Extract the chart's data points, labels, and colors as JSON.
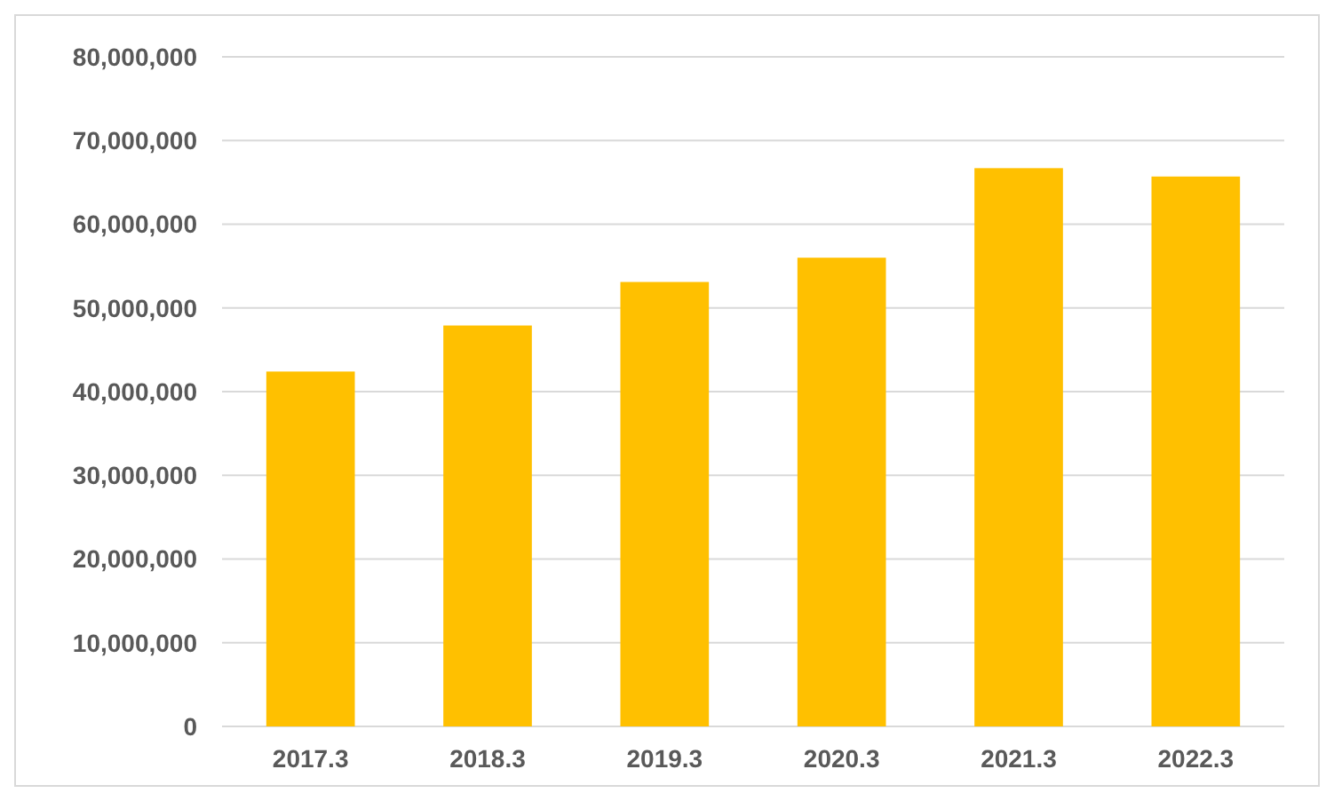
{
  "chart_data": {
    "type": "bar",
    "categories": [
      "2017.3",
      "2018.3",
      "2019.3",
      "2020.3",
      "2021.3",
      "2022.3"
    ],
    "values": [
      42400000,
      47900000,
      53100000,
      56000000,
      66700000,
      65700000
    ],
    "color": "#ffc000",
    "ylim": [
      0,
      80000000
    ],
    "yticks": [
      {
        "value": 0,
        "label": "0"
      },
      {
        "value": 10000000,
        "label": "10,000,000"
      },
      {
        "value": 20000000,
        "label": "20,000,000"
      },
      {
        "value": 30000000,
        "label": "30,000,000"
      },
      {
        "value": 40000000,
        "label": "40,000,000"
      },
      {
        "value": 50000000,
        "label": "50,000,000"
      },
      {
        "value": 60000000,
        "label": "60,000,000"
      },
      {
        "value": 70000000,
        "label": "70,000,000"
      },
      {
        "value": 80000000,
        "label": "80,000,000"
      }
    ],
    "grid": "y"
  }
}
